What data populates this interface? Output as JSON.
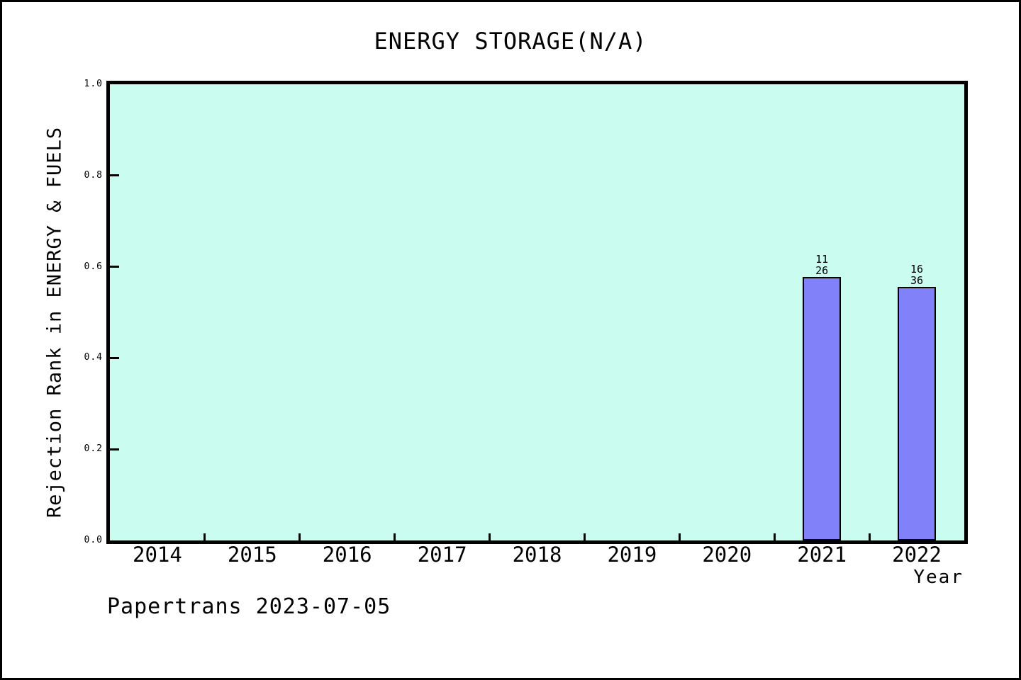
{
  "figure": {
    "background": "#ffffff",
    "border_color": "#000000",
    "footer": "Papertrans 2023-07-05"
  },
  "chart_data": {
    "type": "bar",
    "title": "ENERGY STORAGE(N/A)",
    "xlabel": "Year",
    "ylabel": "Rejection Rank in ENERGY & FUELS",
    "categories": [
      "2014",
      "2015",
      "2016",
      "2017",
      "2018",
      "2019",
      "2020",
      "2021",
      "2022"
    ],
    "bars": [
      {
        "category": "2021",
        "value": 0.577,
        "label_top": "11",
        "label_bottom": "26"
      },
      {
        "category": "2022",
        "value": 0.556,
        "label_top": "16",
        "label_bottom": "36"
      }
    ],
    "ylim": [
      0.0,
      1.0
    ],
    "y_ticks": [
      "0.0",
      "0.2",
      "0.4",
      "0.6",
      "0.8",
      "1.0"
    ],
    "grid": "off",
    "legend": "none",
    "plot_background": "#cafdf0",
    "bar_fill": "#8181fa",
    "bar_border": "#000000",
    "tick_style": "inward"
  }
}
